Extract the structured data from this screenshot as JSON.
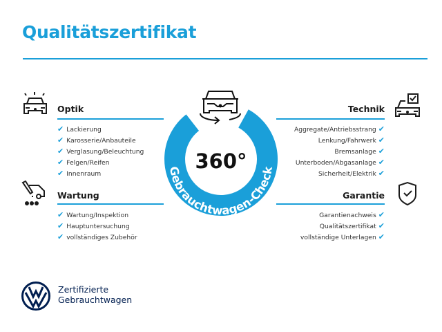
{
  "title": "Qualitätszertifikat",
  "accent_color": "#1a9fd9",
  "badge": {
    "value": "360°",
    "ring_text": "Gebrauchtwagen-Check",
    "icon": "car-rotate-icon"
  },
  "sections": {
    "optik": {
      "title": "Optik",
      "icon": "car-lights-icon",
      "items": [
        "Lackierung",
        "Karosserie/Anbauteile",
        "Verglasung/Beleuchtung",
        "Felgen/Reifen",
        "Innenraum"
      ]
    },
    "wartung": {
      "title": "Wartung",
      "icon": "service-tools-icon",
      "items": [
        "Wartung/Inspektion",
        "Hauptuntersuchung",
        "vollständiges Zubehör"
      ]
    },
    "technik": {
      "title": "Technik",
      "icon": "car-checkbox-icon",
      "items": [
        "Aggregate/Antriebsstrang",
        "Lenkung/Fahrwerk",
        "Bremsanlage",
        "Unterboden/Abgasanlage",
        "Sicherheit/Elektrik"
      ]
    },
    "garantie": {
      "title": "Garantie",
      "icon": "shield-check-icon",
      "items": [
        "Garantienachweis",
        "Qualitätszertifikat",
        "vollständige Unterlagen"
      ]
    }
  },
  "check_glyph": "✔",
  "footer": {
    "logo": "VW",
    "line1": "Zertifizierte",
    "line2": "Gebrauchtwagen"
  }
}
